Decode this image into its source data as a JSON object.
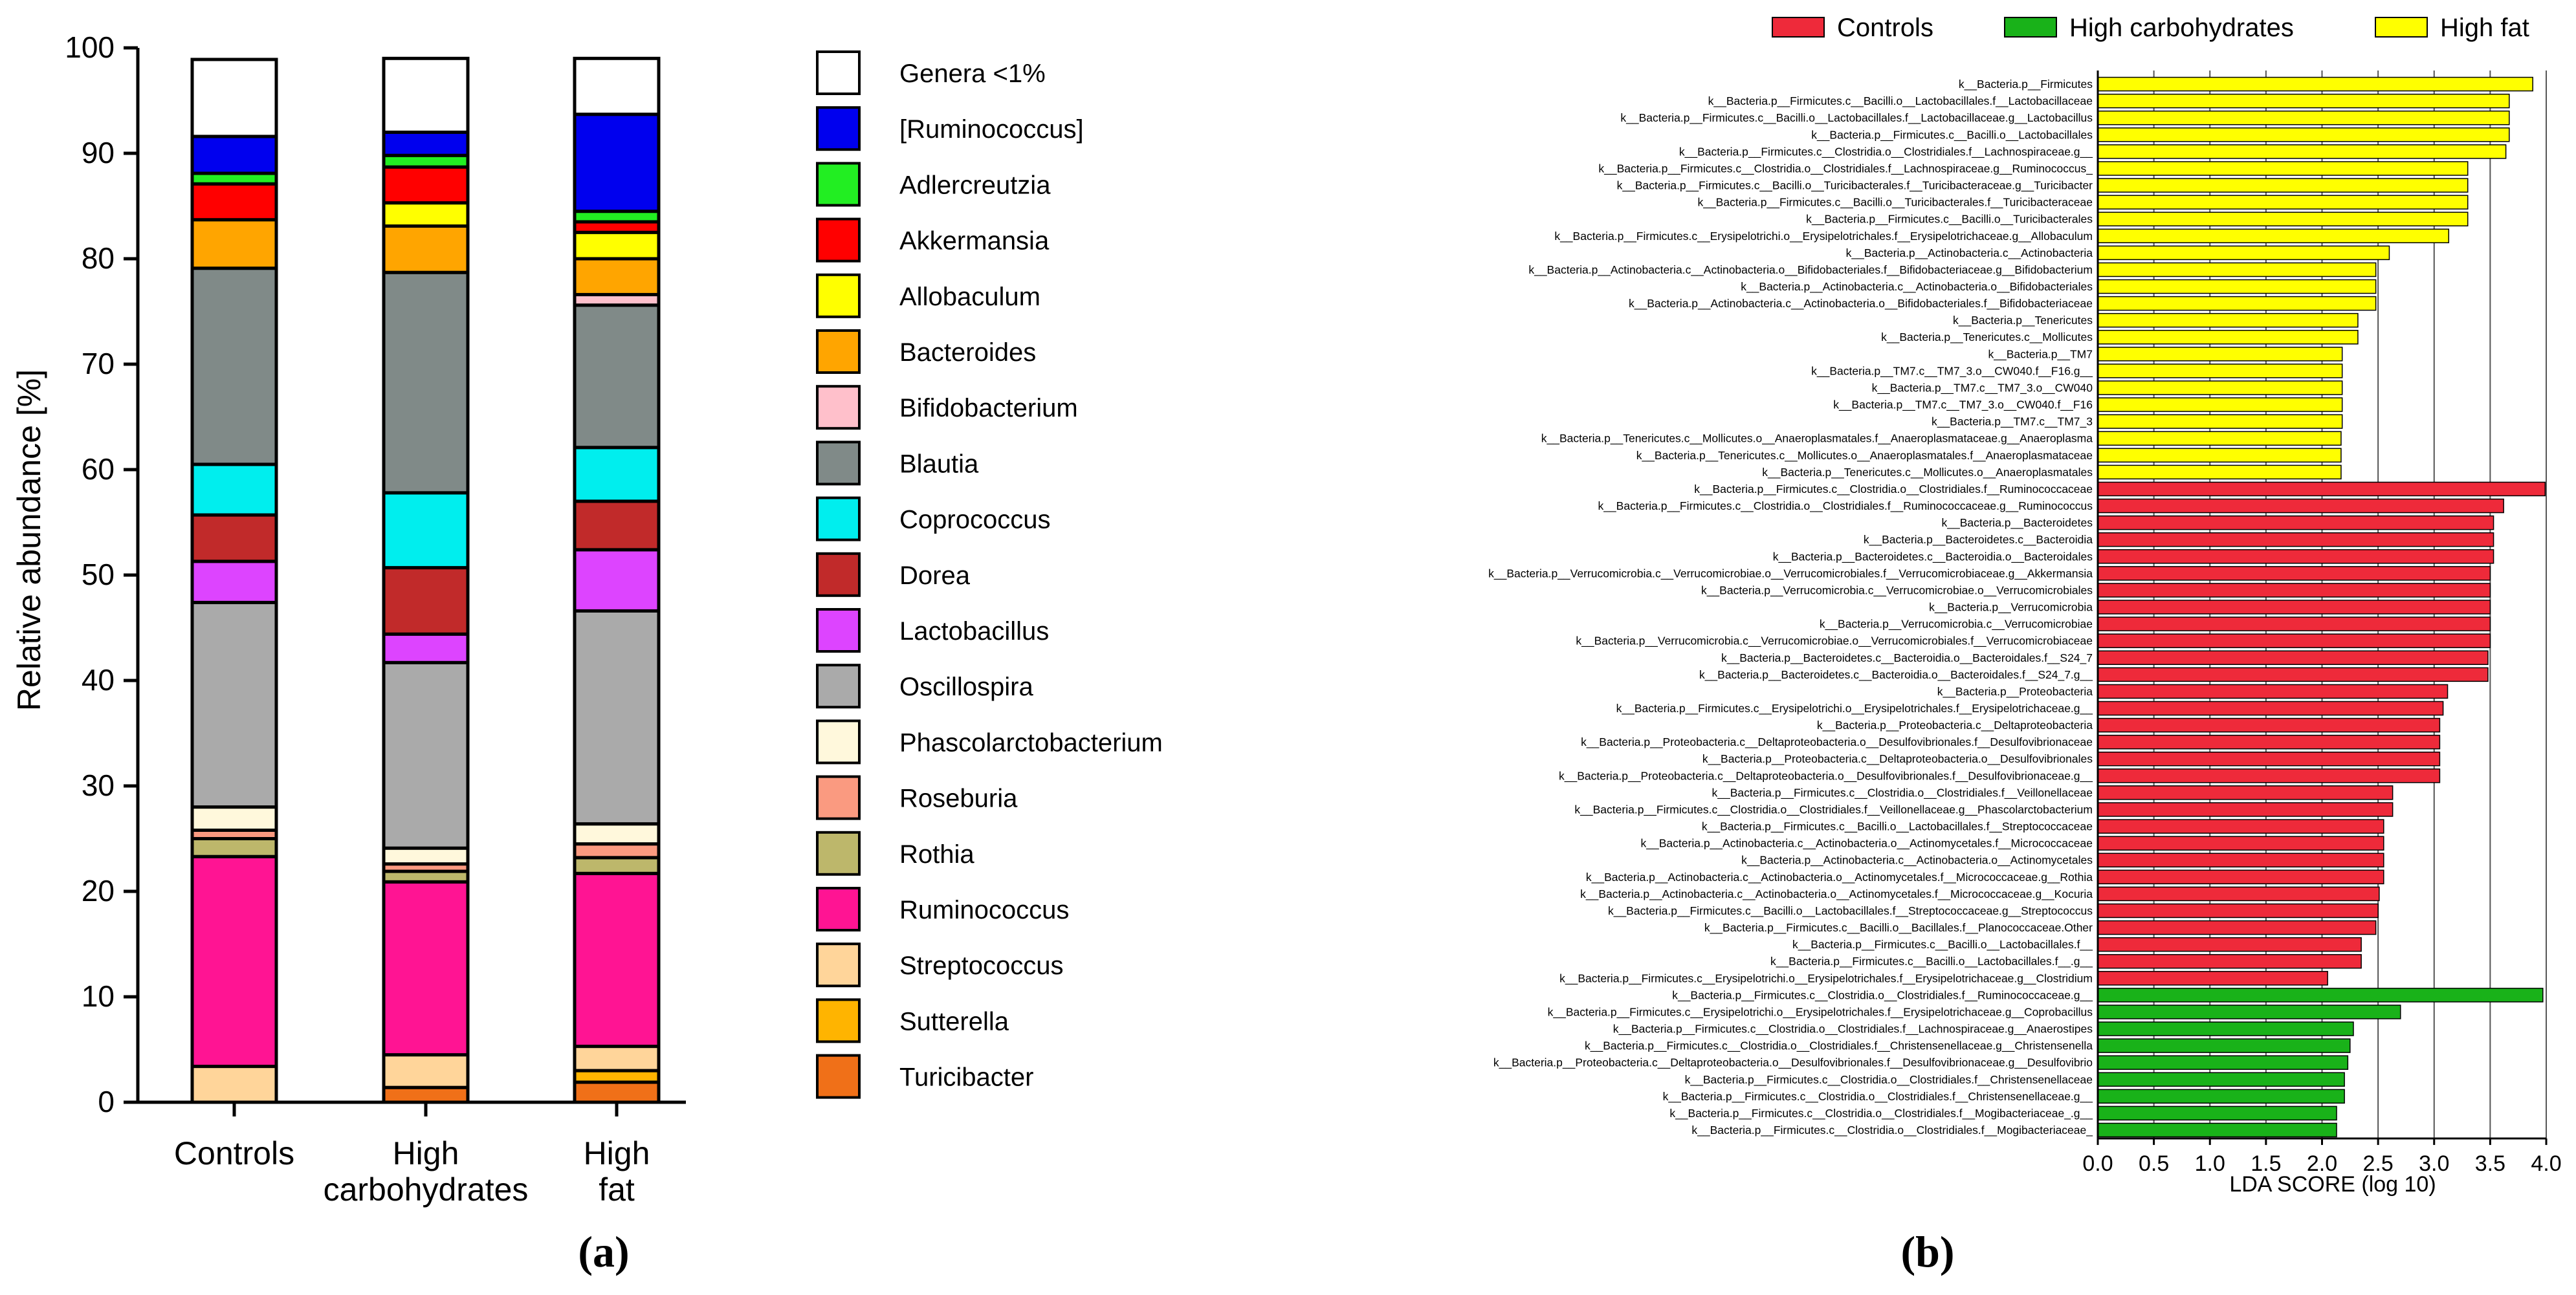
{
  "panel_labels": [
    "(a)",
    "(b)"
  ],
  "chart_data": [
    {
      "type": "bar",
      "stacked": true,
      "panel": "(a)",
      "ylabel": "Relative abundance [%]",
      "ylim": [
        0,
        100
      ],
      "yticks": [
        0,
        10,
        20,
        30,
        40,
        50,
        60,
        70,
        80,
        90,
        100
      ],
      "categories": [
        [
          "Controls"
        ],
        [
          "High",
          "carbohydrates"
        ],
        [
          "High",
          "fat"
        ]
      ],
      "legend_position": "right",
      "series": [
        {
          "name": "Turicibacter",
          "color": "#F07018",
          "values": [
            0,
            1.4,
            1.9
          ]
        },
        {
          "name": "Sutterella",
          "color": "#FFB400",
          "values": [
            0,
            0,
            1.1
          ]
        },
        {
          "name": "Streptococcus",
          "color": "#FFD59A",
          "values": [
            3.4,
            3.1,
            2.3
          ]
        },
        {
          "name": "Ruminococcus",
          "color": "#FF1493",
          "values": [
            19.9,
            16.4,
            16.4
          ]
        },
        {
          "name": "Rothia",
          "color": "#BDB76B",
          "values": [
            1.7,
            1.0,
            1.5
          ]
        },
        {
          "name": "Roseburia",
          "color": "#FA9A80",
          "values": [
            0.8,
            0.7,
            1.3
          ]
        },
        {
          "name": "Phascolarctobacterium",
          "color": "#FFF8DC",
          "values": [
            2.2,
            1.5,
            1.9
          ]
        },
        {
          "name": "Oscillospira",
          "color": "#AAAAAA",
          "values": [
            19.4,
            17.6,
            20.2
          ]
        },
        {
          "name": "Lactobacillus",
          "color": "#DD44FF",
          "values": [
            3.9,
            2.7,
            5.8
          ]
        },
        {
          "name": "Dorea",
          "color": "#C12A2A",
          "values": [
            4.4,
            6.3,
            4.6
          ]
        },
        {
          "name": "Coprococcus",
          "color": "#00EEEE",
          "values": [
            4.8,
            7.1,
            5.1
          ]
        },
        {
          "name": "Blautia",
          "color": "#808A88",
          "values": [
            18.6,
            20.9,
            13.5
          ]
        },
        {
          "name": "Bifidobacterium",
          "color": "#FFC0CB",
          "values": [
            0,
            0,
            1.0
          ]
        },
        {
          "name": "Bacteroides",
          "color": "#FFA500",
          "values": [
            4.6,
            4.4,
            3.4
          ]
        },
        {
          "name": "Allobaculum",
          "color": "#FFFF00",
          "values": [
            0,
            2.2,
            2.5
          ]
        },
        {
          "name": "Akkermansia",
          "color": "#FF0000",
          "values": [
            3.4,
            3.4,
            1.0
          ]
        },
        {
          "name": "Adlercreutzia",
          "color": "#22EE22",
          "values": [
            1.0,
            1.1,
            1.0
          ]
        },
        {
          "name": "[Ruminococcus]",
          "color": "#0000EE",
          "values": [
            3.5,
            2.2,
            9.2
          ]
        },
        {
          "name": "Genera <1%",
          "color": "#FFFFFF",
          "values": [
            7.3,
            7.0,
            5.3
          ]
        }
      ],
      "legend_order": [
        "Genera <1%",
        "[Ruminococcus]",
        "Adlercreutzia",
        "Akkermansia",
        "Allobaculum",
        "Bacteroides",
        "Bifidobacterium",
        "Blautia",
        "Coprococcus",
        "Dorea",
        "Lactobacillus",
        "Oscillospira",
        "Phascolarctobacterium",
        "Roseburia",
        "Rothia",
        "Ruminococcus",
        "Streptococcus",
        "Sutterella",
        "Turicibacter"
      ]
    },
    {
      "type": "bar",
      "orientation": "horizontal",
      "panel": "(b)",
      "xlabel": "LDA SCORE (log 10)",
      "xlim": [
        0,
        4.0
      ],
      "xticks": [
        0.0,
        0.5,
        1.0,
        1.5,
        2.0,
        2.5,
        3.0,
        3.5,
        4.0
      ],
      "grid": "vertical",
      "legend_position": "top",
      "groups": [
        {
          "name": "Controls",
          "color": "#EE2A3A"
        },
        {
          "name": "High carbohydrates",
          "color": "#19B219"
        },
        {
          "name": "High fat",
          "color": "#FFFF00"
        }
      ],
      "features": [
        {
          "label": "k__Bacteria.p__Firmicutes",
          "value": 3.88,
          "group": "High fat"
        },
        {
          "label": "k__Bacteria.p__Firmicutes.c__Bacilli.o__Lactobacillales.f__Lactobacillaceae",
          "value": 3.67,
          "group": "High fat"
        },
        {
          "label": "k__Bacteria.p__Firmicutes.c__Bacilli.o__Lactobacillales.f__Lactobacillaceae.g__Lactobacillus",
          "value": 3.67,
          "group": "High fat"
        },
        {
          "label": "k__Bacteria.p__Firmicutes.c__Bacilli.o__Lactobacillales",
          "value": 3.67,
          "group": "High fat"
        },
        {
          "label": "k__Bacteria.p__Firmicutes.c__Clostridia.o__Clostridiales.f__Lachnospiraceae.g__",
          "value": 3.64,
          "group": "High fat"
        },
        {
          "label": "k__Bacteria.p__Firmicutes.c__Clostridia.o__Clostridiales.f__Lachnospiraceae.g__Ruminococcus_",
          "value": 3.3,
          "group": "High fat"
        },
        {
          "label": "k__Bacteria.p__Firmicutes.c__Bacilli.o__Turicibacterales.f__Turicibacteraceae.g__Turicibacter",
          "value": 3.3,
          "group": "High fat"
        },
        {
          "label": "k__Bacteria.p__Firmicutes.c__Bacilli.o__Turicibacterales.f__Turicibacteraceae",
          "value": 3.3,
          "group": "High fat"
        },
        {
          "label": "k__Bacteria.p__Firmicutes.c__Bacilli.o__Turicibacterales",
          "value": 3.3,
          "group": "High fat"
        },
        {
          "label": "k__Bacteria.p__Firmicutes.c__Erysipelotrichi.o__Erysipelotrichales.f__Erysipelotrichaceae.g__Allobaculum",
          "value": 3.13,
          "group": "High fat"
        },
        {
          "label": "k__Bacteria.p__Actinobacteria.c__Actinobacteria",
          "value": 2.6,
          "group": "High fat"
        },
        {
          "label": "k__Bacteria.p__Actinobacteria.c__Actinobacteria.o__Bifidobacteriales.f__Bifidobacteriaceae.g__Bifidobacterium",
          "value": 2.48,
          "group": "High fat"
        },
        {
          "label": "k__Bacteria.p__Actinobacteria.c__Actinobacteria.o__Bifidobacteriales",
          "value": 2.48,
          "group": "High fat"
        },
        {
          "label": "k__Bacteria.p__Actinobacteria.c__Actinobacteria.o__Bifidobacteriales.f__Bifidobacteriaceae",
          "value": 2.48,
          "group": "High fat"
        },
        {
          "label": "k__Bacteria.p__Tenericutes",
          "value": 2.32,
          "group": "High fat"
        },
        {
          "label": "k__Bacteria.p__Tenericutes.c__Mollicutes",
          "value": 2.32,
          "group": "High fat"
        },
        {
          "label": "k__Bacteria.p__TM7",
          "value": 2.18,
          "group": "High fat"
        },
        {
          "label": "k__Bacteria.p__TM7.c__TM7_3.o__CW040.f__F16.g__",
          "value": 2.18,
          "group": "High fat"
        },
        {
          "label": "k__Bacteria.p__TM7.c__TM7_3.o__CW040",
          "value": 2.18,
          "group": "High fat"
        },
        {
          "label": "k__Bacteria.p__TM7.c__TM7_3.o__CW040.f__F16",
          "value": 2.18,
          "group": "High fat"
        },
        {
          "label": "k__Bacteria.p__TM7.c__TM7_3",
          "value": 2.18,
          "group": "High fat"
        },
        {
          "label": "k__Bacteria.p__Tenericutes.c__Mollicutes.o__Anaeroplasmatales.f__Anaeroplasmataceae.g__Anaeroplasma",
          "value": 2.17,
          "group": "High fat"
        },
        {
          "label": "k__Bacteria.p__Tenericutes.c__Mollicutes.o__Anaeroplasmatales.f__Anaeroplasmataceae",
          "value": 2.17,
          "group": "High fat"
        },
        {
          "label": "k__Bacteria.p__Tenericutes.c__Mollicutes.o__Anaeroplasmatales",
          "value": 2.17,
          "group": "High fat"
        },
        {
          "label": "k__Bacteria.p__Firmicutes.c__Clostridia.o__Clostridiales.f__Ruminococcaceae",
          "value": 3.99,
          "group": "Controls"
        },
        {
          "label": "k__Bacteria.p__Firmicutes.c__Clostridia.o__Clostridiales.f__Ruminococcaceae.g__Ruminococcus",
          "value": 3.62,
          "group": "Controls"
        },
        {
          "label": "k__Bacteria.p__Bacteroidetes",
          "value": 3.53,
          "group": "Controls"
        },
        {
          "label": "k__Bacteria.p__Bacteroidetes.c__Bacteroidia",
          "value": 3.53,
          "group": "Controls"
        },
        {
          "label": "k__Bacteria.p__Bacteroidetes.c__Bacteroidia.o__Bacteroidales",
          "value": 3.53,
          "group": "Controls"
        },
        {
          "label": "k__Bacteria.p__Verrucomicrobia.c__Verrucomicrobiae.o__Verrucomicrobiales.f__Verrucomicrobiaceae.g__Akkermansia",
          "value": 3.5,
          "group": "Controls"
        },
        {
          "label": "k__Bacteria.p__Verrucomicrobia.c__Verrucomicrobiae.o__Verrucomicrobiales",
          "value": 3.5,
          "group": "Controls"
        },
        {
          "label": "k__Bacteria.p__Verrucomicrobia",
          "value": 3.5,
          "group": "Controls"
        },
        {
          "label": "k__Bacteria.p__Verrucomicrobia.c__Verrucomicrobiae",
          "value": 3.5,
          "group": "Controls"
        },
        {
          "label": "k__Bacteria.p__Verrucomicrobia.c__Verrucomicrobiae.o__Verrucomicrobiales.f__Verrucomicrobiaceae",
          "value": 3.5,
          "group": "Controls"
        },
        {
          "label": "k__Bacteria.p__Bacteroidetes.c__Bacteroidia.o__Bacteroidales.f__S24_7",
          "value": 3.48,
          "group": "Controls"
        },
        {
          "label": "k__Bacteria.p__Bacteroidetes.c__Bacteroidia.o__Bacteroidales.f__S24_7.g__",
          "value": 3.48,
          "group": "Controls"
        },
        {
          "label": "k__Bacteria.p__Proteobacteria",
          "value": 3.12,
          "group": "Controls"
        },
        {
          "label": "k__Bacteria.p__Firmicutes.c__Erysipelotrichi.o__Erysipelotrichales.f__Erysipelotrichaceae.g__",
          "value": 3.08,
          "group": "Controls"
        },
        {
          "label": "k__Bacteria.p__Proteobacteria.c__Deltaproteobacteria",
          "value": 3.05,
          "group": "Controls"
        },
        {
          "label": "k__Bacteria.p__Proteobacteria.c__Deltaproteobacteria.o__Desulfovibrionales.f__Desulfovibrionaceae",
          "value": 3.05,
          "group": "Controls"
        },
        {
          "label": "k__Bacteria.p__Proteobacteria.c__Deltaproteobacteria.o__Desulfovibrionales",
          "value": 3.05,
          "group": "Controls"
        },
        {
          "label": "k__Bacteria.p__Proteobacteria.c__Deltaproteobacteria.o__Desulfovibrionales.f__Desulfovibrionaceae.g__",
          "value": 3.05,
          "group": "Controls"
        },
        {
          "label": "k__Bacteria.p__Firmicutes.c__Clostridia.o__Clostridiales.f__Veillonellaceae",
          "value": 2.63,
          "group": "Controls"
        },
        {
          "label": "k__Bacteria.p__Firmicutes.c__Clostridia.o__Clostridiales.f__Veillonellaceae.g__Phascolarctobacterium",
          "value": 2.63,
          "group": "Controls"
        },
        {
          "label": "k__Bacteria.p__Firmicutes.c__Bacilli.o__Lactobacillales.f__Streptococcaceae",
          "value": 2.55,
          "group": "Controls"
        },
        {
          "label": "k__Bacteria.p__Actinobacteria.c__Actinobacteria.o__Actinomycetales.f__Micrococcaceae",
          "value": 2.55,
          "group": "Controls"
        },
        {
          "label": "k__Bacteria.p__Actinobacteria.c__Actinobacteria.o__Actinomycetales",
          "value": 2.55,
          "group": "Controls"
        },
        {
          "label": "k__Bacteria.p__Actinobacteria.c__Actinobacteria.o__Actinomycetales.f__Micrococcaceae.g__Rothia",
          "value": 2.55,
          "group": "Controls"
        },
        {
          "label": "k__Bacteria.p__Actinobacteria.c__Actinobacteria.o__Actinomycetales.f__Micrococcaceae.g__Kocuria",
          "value": 2.51,
          "group": "Controls"
        },
        {
          "label": "k__Bacteria.p__Firmicutes.c__Bacilli.o__Lactobacillales.f__Streptococcaceae.g__Streptococcus",
          "value": 2.5,
          "group": "Controls"
        },
        {
          "label": "k__Bacteria.p__Firmicutes.c__Bacilli.o__Bacillales.f__Planococcaceae.Other",
          "value": 2.48,
          "group": "Controls"
        },
        {
          "label": "k__Bacteria.p__Firmicutes.c__Bacilli.o__Lactobacillales.f__",
          "value": 2.35,
          "group": "Controls"
        },
        {
          "label": "k__Bacteria.p__Firmicutes.c__Bacilli.o__Lactobacillales.f__.g__",
          "value": 2.35,
          "group": "Controls"
        },
        {
          "label": "k__Bacteria.p__Firmicutes.c__Erysipelotrichi.o__Erysipelotrichales.f__Erysipelotrichaceae.g__Clostridium",
          "value": 2.05,
          "group": "Controls"
        },
        {
          "label": "k__Bacteria.p__Firmicutes.c__Clostridia.o__Clostridiales.f__Ruminococcaceae.g__",
          "value": 3.97,
          "group": "High carbohydrates"
        },
        {
          "label": "k__Bacteria.p__Firmicutes.c__Erysipelotrichi.o__Erysipelotrichales.f__Erysipelotrichaceae.g__Coprobacillus",
          "value": 2.7,
          "group": "High carbohydrates"
        },
        {
          "label": "k__Bacteria.p__Firmicutes.c__Clostridia.o__Clostridiales.f__Lachnospiraceae.g__Anaerostipes",
          "value": 2.28,
          "group": "High carbohydrates"
        },
        {
          "label": "k__Bacteria.p__Firmicutes.c__Clostridia.o__Clostridiales.f__Christensenellaceae.g__Christensenella",
          "value": 2.25,
          "group": "High carbohydrates"
        },
        {
          "label": "k__Bacteria.p__Proteobacteria.c__Deltaproteobacteria.o__Desulfovibrionales.f__Desulfovibrionaceae.g__Desulfovibrio",
          "value": 2.23,
          "group": "High carbohydrates"
        },
        {
          "label": "k__Bacteria.p__Firmicutes.c__Clostridia.o__Clostridiales.f__Christensenellaceae",
          "value": 2.2,
          "group": "High carbohydrates"
        },
        {
          "label": "k__Bacteria.p__Firmicutes.c__Clostridia.o__Clostridiales.f__Christensenellaceae.g__",
          "value": 2.2,
          "group": "High carbohydrates"
        },
        {
          "label": "k__Bacteria.p__Firmicutes.c__Clostridia.o__Clostridiales.f__Mogibacteriaceae_.g__",
          "value": 2.13,
          "group": "High carbohydrates"
        },
        {
          "label": "k__Bacteria.p__Firmicutes.c__Clostridia.o__Clostridiales.f__Mogibacteriaceae_",
          "value": 2.13,
          "group": "High carbohydrates"
        }
      ]
    }
  ]
}
